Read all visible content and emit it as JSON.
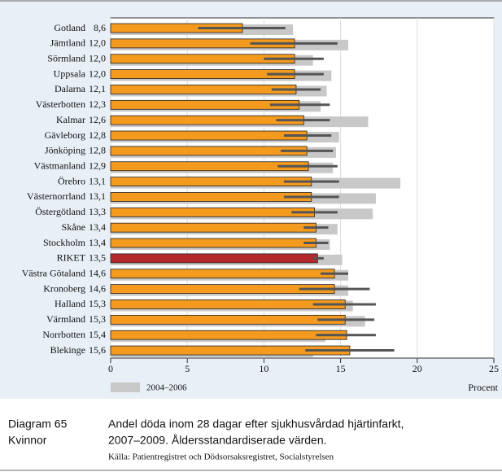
{
  "chart_data": {
    "type": "bar",
    "orientation": "horizontal",
    "categories": [
      "Gotland",
      "Jämtland",
      "Sörmland",
      "Uppsala",
      "Dalarna",
      "Västerbotten",
      "Kalmar",
      "Gävleborg",
      "Jönköping",
      "Västmanland",
      "Örebro",
      "Västernorrland",
      "Östergötland",
      "Skåne",
      "Stockholm",
      "RIKET",
      "Västra Götaland",
      "Kronoberg",
      "Halland",
      "Värmland",
      "Norrbotten",
      "Blekinge"
    ],
    "values": [
      8.6,
      12.0,
      12.0,
      12.0,
      12.1,
      12.3,
      12.6,
      12.8,
      12.8,
      12.9,
      13.1,
      13.1,
      13.3,
      13.4,
      13.4,
      13.5,
      14.6,
      14.6,
      15.3,
      15.3,
      15.4,
      15.6
    ],
    "value_labels": [
      "8,6",
      "12,0",
      "12,0",
      "12,0",
      "12,1",
      "12,3",
      "12,6",
      "12,8",
      "12,8",
      "12,9",
      "13,1",
      "13,1",
      "13,3",
      "13,4",
      "13,4",
      "13,5",
      "14,6",
      "14,6",
      "15,3",
      "15,3",
      "15,4",
      "15,6"
    ],
    "colors": [
      "#f39a1f",
      "#f39a1f",
      "#f39a1f",
      "#f39a1f",
      "#f39a1f",
      "#f39a1f",
      "#f39a1f",
      "#f39a1f",
      "#f39a1f",
      "#f39a1f",
      "#f39a1f",
      "#f39a1f",
      "#f39a1f",
      "#f39a1f",
      "#f39a1f",
      "#b3282d",
      "#f39a1f",
      "#f39a1f",
      "#f39a1f",
      "#f39a1f",
      "#f39a1f",
      "#f39a1f"
    ],
    "ci_low": [
      5.7,
      9.1,
      10.0,
      10.2,
      10.5,
      10.4,
      10.8,
      11.3,
      11.1,
      10.9,
      11.3,
      11.3,
      11.8,
      12.6,
      12.6,
      13.2,
      13.7,
      12.3,
      13.2,
      13.5,
      13.4,
      12.7
    ],
    "ci_high": [
      11.4,
      14.8,
      13.9,
      13.9,
      13.7,
      14.3,
      14.3,
      14.4,
      14.5,
      14.8,
      14.9,
      14.9,
      14.8,
      14.2,
      14.2,
      13.9,
      15.5,
      16.9,
      17.3,
      17.2,
      17.3,
      18.5
    ],
    "error_color": "#555555",
    "comparison": {
      "name": "2004–2006",
      "color": "#c8c8c8",
      "values": [
        11.9,
        15.5,
        13.2,
        14.4,
        14.1,
        13.7,
        16.8,
        14.9,
        14.7,
        14.5,
        18.9,
        17.3,
        17.1,
        14.8,
        14.3,
        15.1,
        15.5,
        15.5,
        15.8,
        16.6,
        14.0,
        13.2
      ]
    },
    "xlim": [
      0,
      25
    ],
    "xticks": [
      0,
      5,
      10,
      15,
      20,
      25
    ],
    "xlabel": "Procent"
  },
  "caption": {
    "label": "Diagram 65",
    "sublabel": "Kvinnor",
    "lines": [
      "Andel döda inom 28 dagar efter sjukhusvårdad hjärtinfarkt,",
      "2007–2009. Åldersstandardiserade värden."
    ],
    "source": "Källa: Patientregistret och Dödsorsaksregistret, Socialstyrelsen"
  }
}
